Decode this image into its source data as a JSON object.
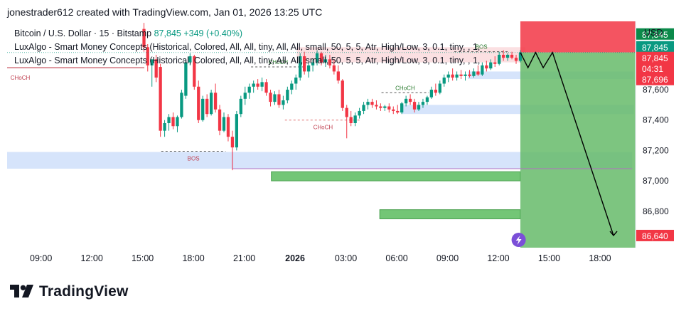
{
  "header": {
    "author_line": "jonestrader612 created with TradingView.com, Jan 01, 2026 13:25 UTC"
  },
  "legend": {
    "symbol": "Bitcoin / U.S. Dollar · 15 · Bitstamp",
    "price": "87,845",
    "change": "+349 (+0.40%)",
    "indicator_1": "LuxAlgo - Smart Money Concepts (Historical, Colored, All, All, tiny, All, All, small, 50, 5, 5, Atr, High/Low, 3, 0.1, tiny, , 1,",
    "indicator_2": "LuxAlgo - Smart Money Concepts (Historical, Colored, All, All, tiny, All, All, small, 50, 5, 5, Atr, High/Low, 3, 0.1, tiny, , 1,"
  },
  "axis": {
    "currency": "USD"
  },
  "price_tags": {
    "top_green": "87,845",
    "red_price": "87,845",
    "red_countdown": "04:31",
    "red_second": "87,696",
    "target": "86,640"
  },
  "chart_data": {
    "type": "candlestick",
    "symbol": "Bitcoin / U.S. Dollar",
    "interval": "15",
    "exchange": "Bitstamp",
    "y_ticks": [
      87600,
      87400,
      87200,
      87000,
      86800
    ],
    "x_ticks": [
      "09:00",
      "12:00",
      "15:00",
      "18:00",
      "21:00",
      "2026",
      "03:00",
      "06:00",
      "09:00",
      "12:00",
      "15:00",
      "18:00"
    ],
    "x_tick_hours": [
      9,
      12,
      15,
      18,
      21,
      24,
      27,
      30,
      33,
      36,
      39,
      42
    ],
    "ylim": [
      86560,
      88050
    ],
    "xlim": [
      7.0,
      44.1
    ],
    "last_price": 87845,
    "target_price": 86640,
    "candles": [
      {
        "t": 15.08,
        "o": 88000,
        "h": 88040,
        "l": 87850,
        "c": 87880
      },
      {
        "t": 15.3,
        "o": 87880,
        "h": 87900,
        "l": 87720,
        "c": 87760
      },
      {
        "t": 15.55,
        "o": 87760,
        "h": 87800,
        "l": 87620,
        "c": 87800
      },
      {
        "t": 15.8,
        "o": 87800,
        "h": 87830,
        "l": 87650,
        "c": 87680
      },
      {
        "t": 16.05,
        "o": 87750,
        "h": 87770,
        "l": 87290,
        "c": 87330
      },
      {
        "t": 16.3,
        "o": 87330,
        "h": 87400,
        "l": 87290,
        "c": 87380
      },
      {
        "t": 16.55,
        "o": 87380,
        "h": 87440,
        "l": 87330,
        "c": 87420
      },
      {
        "t": 16.8,
        "o": 87420,
        "h": 87450,
        "l": 87340,
        "c": 87360
      },
      {
        "t": 17.05,
        "o": 87360,
        "h": 87430,
        "l": 87320,
        "c": 87420
      },
      {
        "t": 17.3,
        "o": 87420,
        "h": 87600,
        "l": 87410,
        "c": 87580
      },
      {
        "t": 17.55,
        "o": 87560,
        "h": 87800,
        "l": 87540,
        "c": 87780
      },
      {
        "t": 17.8,
        "o": 87780,
        "h": 87840,
        "l": 87760,
        "c": 87820
      },
      {
        "t": 18.05,
        "o": 87820,
        "h": 87830,
        "l": 87600,
        "c": 87620
      },
      {
        "t": 18.3,
        "o": 87620,
        "h": 87660,
        "l": 87380,
        "c": 87400
      },
      {
        "t": 18.55,
        "o": 87400,
        "h": 87560,
        "l": 87390,
        "c": 87540
      },
      {
        "t": 18.8,
        "o": 87540,
        "h": 87570,
        "l": 87420,
        "c": 87440
      },
      {
        "t": 19.05,
        "o": 87440,
        "h": 87600,
        "l": 87430,
        "c": 87580
      },
      {
        "t": 19.3,
        "o": 87580,
        "h": 87640,
        "l": 87450,
        "c": 87470
      },
      {
        "t": 19.55,
        "o": 87470,
        "h": 87500,
        "l": 87300,
        "c": 87330
      },
      {
        "t": 19.8,
        "o": 87330,
        "h": 87450,
        "l": 87320,
        "c": 87420
      },
      {
        "t": 20.05,
        "o": 87420,
        "h": 87440,
        "l": 87260,
        "c": 87290
      },
      {
        "t": 20.3,
        "o": 87290,
        "h": 87330,
        "l": 87070,
        "c": 87220
      },
      {
        "t": 20.55,
        "o": 87220,
        "h": 87460,
        "l": 87200,
        "c": 87440
      },
      {
        "t": 20.8,
        "o": 87440,
        "h": 87560,
        "l": 87420,
        "c": 87540
      },
      {
        "t": 21.05,
        "o": 87540,
        "h": 87620,
        "l": 87500,
        "c": 87580
      },
      {
        "t": 21.3,
        "o": 87580,
        "h": 87640,
        "l": 87540,
        "c": 87620
      },
      {
        "t": 21.55,
        "o": 87620,
        "h": 87660,
        "l": 87580,
        "c": 87640
      },
      {
        "t": 21.8,
        "o": 87640,
        "h": 87670,
        "l": 87600,
        "c": 87620
      },
      {
        "t": 22.05,
        "o": 87620,
        "h": 87680,
        "l": 87590,
        "c": 87650
      },
      {
        "t": 22.3,
        "o": 87650,
        "h": 87670,
        "l": 87560,
        "c": 87580
      },
      {
        "t": 22.55,
        "o": 87580,
        "h": 87600,
        "l": 87490,
        "c": 87520
      },
      {
        "t": 22.8,
        "o": 87520,
        "h": 87590,
        "l": 87500,
        "c": 87570
      },
      {
        "t": 23.05,
        "o": 87570,
        "h": 87600,
        "l": 87480,
        "c": 87500
      },
      {
        "t": 23.3,
        "o": 87500,
        "h": 87560,
        "l": 87470,
        "c": 87530
      },
      {
        "t": 23.55,
        "o": 87530,
        "h": 87620,
        "l": 87510,
        "c": 87600
      },
      {
        "t": 23.8,
        "o": 87600,
        "h": 87660,
        "l": 87570,
        "c": 87640
      },
      {
        "t": 24.05,
        "o": 87640,
        "h": 87700,
        "l": 87600,
        "c": 87680
      },
      {
        "t": 24.3,
        "o": 87680,
        "h": 87840,
        "l": 87660,
        "c": 87820
      },
      {
        "t": 24.55,
        "o": 87820,
        "h": 87850,
        "l": 87700,
        "c": 87720
      },
      {
        "t": 24.8,
        "o": 87720,
        "h": 87780,
        "l": 87680,
        "c": 87760
      },
      {
        "t": 25.05,
        "o": 87760,
        "h": 87800,
        "l": 87720,
        "c": 87780
      },
      {
        "t": 25.3,
        "o": 87780,
        "h": 87860,
        "l": 87760,
        "c": 87840
      },
      {
        "t": 25.55,
        "o": 87840,
        "h": 87850,
        "l": 87760,
        "c": 87780
      },
      {
        "t": 25.8,
        "o": 87780,
        "h": 87830,
        "l": 87750,
        "c": 87800
      },
      {
        "t": 26.05,
        "o": 87800,
        "h": 87830,
        "l": 87740,
        "c": 87760
      },
      {
        "t": 26.3,
        "o": 87760,
        "h": 87800,
        "l": 87700,
        "c": 87720
      },
      {
        "t": 26.55,
        "o": 87720,
        "h": 87760,
        "l": 87640,
        "c": 87660
      },
      {
        "t": 26.8,
        "o": 87660,
        "h": 87670,
        "l": 87460,
        "c": 87480
      },
      {
        "t": 27.05,
        "o": 87480,
        "h": 87500,
        "l": 87280,
        "c": 87420
      },
      {
        "t": 27.3,
        "o": 87420,
        "h": 87460,
        "l": 87360,
        "c": 87380
      },
      {
        "t": 27.55,
        "o": 87380,
        "h": 87450,
        "l": 87360,
        "c": 87430
      },
      {
        "t": 27.8,
        "o": 87430,
        "h": 87480,
        "l": 87410,
        "c": 87460
      },
      {
        "t": 28.05,
        "o": 87460,
        "h": 87520,
        "l": 87440,
        "c": 87500
      },
      {
        "t": 28.3,
        "o": 87500,
        "h": 87540,
        "l": 87470,
        "c": 87520
      },
      {
        "t": 28.55,
        "o": 87520,
        "h": 87540,
        "l": 87480,
        "c": 87500
      },
      {
        "t": 28.8,
        "o": 87500,
        "h": 87530,
        "l": 87470,
        "c": 87490
      },
      {
        "t": 29.05,
        "o": 87490,
        "h": 87510,
        "l": 87460,
        "c": 87480
      },
      {
        "t": 29.3,
        "o": 87480,
        "h": 87500,
        "l": 87460,
        "c": 87490
      },
      {
        "t": 29.55,
        "o": 87490,
        "h": 87510,
        "l": 87450,
        "c": 87470
      },
      {
        "t": 29.8,
        "o": 87470,
        "h": 87490,
        "l": 87440,
        "c": 87460
      },
      {
        "t": 30.05,
        "o": 87460,
        "h": 87500,
        "l": 87440,
        "c": 87450
      },
      {
        "t": 30.3,
        "o": 87450,
        "h": 87520,
        "l": 87440,
        "c": 87510
      },
      {
        "t": 30.55,
        "o": 87510,
        "h": 87560,
        "l": 87490,
        "c": 87540
      },
      {
        "t": 30.8,
        "o": 87540,
        "h": 87570,
        "l": 87500,
        "c": 87520
      },
      {
        "t": 31.05,
        "o": 87520,
        "h": 87540,
        "l": 87450,
        "c": 87470
      },
      {
        "t": 31.3,
        "o": 87470,
        "h": 87520,
        "l": 87460,
        "c": 87500
      },
      {
        "t": 31.55,
        "o": 87500,
        "h": 87540,
        "l": 87480,
        "c": 87520
      },
      {
        "t": 31.8,
        "o": 87520,
        "h": 87560,
        "l": 87500,
        "c": 87550
      },
      {
        "t": 32.05,
        "o": 87550,
        "h": 87620,
        "l": 87540,
        "c": 87600
      },
      {
        "t": 32.3,
        "o": 87600,
        "h": 87640,
        "l": 87560,
        "c": 87580
      },
      {
        "t": 32.55,
        "o": 87580,
        "h": 87660,
        "l": 87570,
        "c": 87640
      },
      {
        "t": 32.8,
        "o": 87640,
        "h": 87700,
        "l": 87620,
        "c": 87680
      },
      {
        "t": 33.05,
        "o": 87680,
        "h": 87720,
        "l": 87650,
        "c": 87700
      },
      {
        "t": 33.3,
        "o": 87700,
        "h": 87740,
        "l": 87660,
        "c": 87680
      },
      {
        "t": 33.55,
        "o": 87680,
        "h": 87720,
        "l": 87660,
        "c": 87700
      },
      {
        "t": 33.8,
        "o": 87700,
        "h": 87730,
        "l": 87670,
        "c": 87690
      },
      {
        "t": 34.05,
        "o": 87690,
        "h": 87720,
        "l": 87660,
        "c": 87700
      },
      {
        "t": 34.3,
        "o": 87700,
        "h": 87730,
        "l": 87680,
        "c": 87690
      },
      {
        "t": 34.55,
        "o": 87690,
        "h": 87740,
        "l": 87680,
        "c": 87720
      },
      {
        "t": 34.8,
        "o": 87720,
        "h": 87760,
        "l": 87690,
        "c": 87700
      },
      {
        "t": 35.05,
        "o": 87700,
        "h": 87780,
        "l": 87690,
        "c": 87760
      },
      {
        "t": 35.3,
        "o": 87760,
        "h": 87790,
        "l": 87720,
        "c": 87740
      },
      {
        "t": 35.55,
        "o": 87740,
        "h": 87800,
        "l": 87730,
        "c": 87780
      },
      {
        "t": 35.8,
        "o": 87780,
        "h": 87820,
        "l": 87750,
        "c": 87770
      },
      {
        "t": 36.05,
        "o": 87770,
        "h": 87850,
        "l": 87760,
        "c": 87830
      },
      {
        "t": 36.3,
        "o": 87830,
        "h": 87860,
        "l": 87790,
        "c": 87810
      },
      {
        "t": 36.55,
        "o": 87810,
        "h": 87840,
        "l": 87790,
        "c": 87830
      },
      {
        "t": 36.8,
        "o": 87830,
        "h": 87850,
        "l": 87800,
        "c": 87810
      },
      {
        "t": 37.05,
        "o": 87810,
        "h": 87830,
        "l": 87770,
        "c": 87790
      },
      {
        "t": 37.3,
        "o": 87790,
        "h": 87860,
        "l": 87780,
        "c": 87845
      }
    ],
    "structure_labels": [
      {
        "label": "CHoCH",
        "price": 87745
      },
      {
        "label": "BOS",
        "price": 87195
      },
      {
        "label": "CHoCH",
        "price": 87750
      },
      {
        "label": "CHoCH",
        "price": 87400
      },
      {
        "label": "CHoCH",
        "price": 87580
      },
      {
        "label": "BOS",
        "price": 87850
      }
    ],
    "zones": [
      {
        "kind": "supply",
        "from": 87780,
        "to": 87880
      },
      {
        "kind": "demand",
        "from": 87080,
        "to": 87190
      },
      {
        "kind": "demand",
        "from": 87440,
        "to": 87500
      },
      {
        "kind": "demand",
        "from": 87670,
        "to": 87720
      },
      {
        "kind": "order-block",
        "from": 87000,
        "to": 87060
      },
      {
        "kind": "order-block",
        "from": 86750,
        "to": 86810
      }
    ],
    "position": {
      "type": "short",
      "entry": 87845,
      "stop": 88050,
      "target": 86640
    },
    "projection": [
      {
        "t": 37.3,
        "p": 87845
      },
      {
        "t": 37.75,
        "p": 87745
      },
      {
        "t": 38.2,
        "p": 87845
      },
      {
        "t": 38.65,
        "p": 87745
      },
      {
        "t": 39.2,
        "p": 87845
      },
      {
        "t": 42.8,
        "p": 86640
      }
    ]
  }
}
